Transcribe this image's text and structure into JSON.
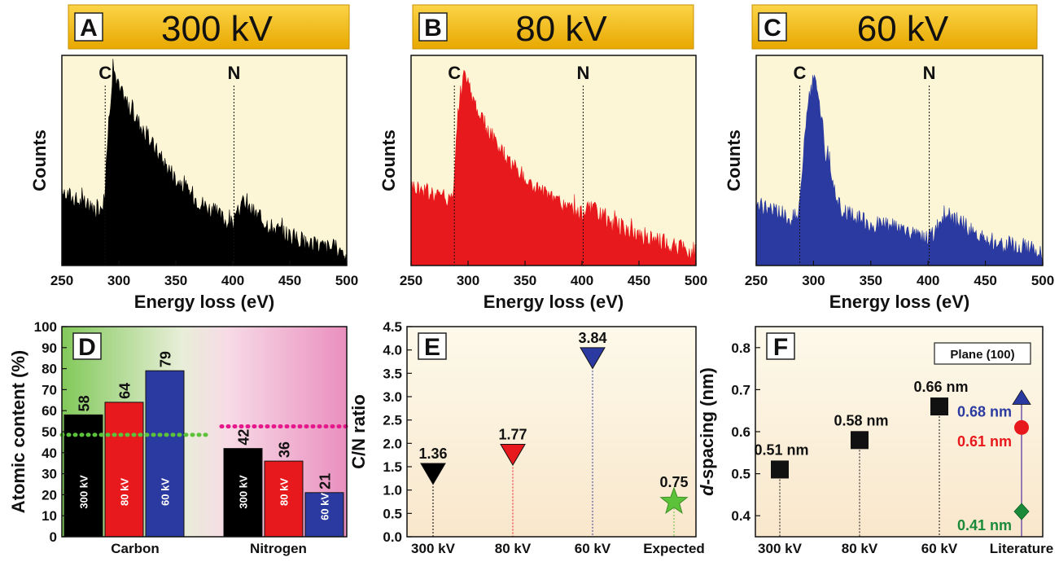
{
  "chart_data": [
    {
      "panel": "A",
      "type": "area",
      "banner": "300 kV",
      "xlabel": "Energy loss (eV)",
      "ylabel": "Counts",
      "xlim": [
        250,
        500
      ],
      "xticks": [
        "250",
        "300",
        "350",
        "400",
        "450",
        "500"
      ],
      "edges": [
        {
          "label": "C",
          "x": 288
        },
        {
          "label": "N",
          "x": 401
        }
      ],
      "color": "#000000",
      "series": [
        {
          "x": [
            250,
            260,
            270,
            280,
            287,
            291,
            295,
            300,
            310,
            320,
            330,
            340,
            350,
            360,
            370,
            380,
            390,
            398,
            402,
            408,
            415,
            425,
            440,
            460,
            480,
            500
          ],
          "y": [
            0.36,
            0.32,
            0.29,
            0.27,
            0.3,
            0.68,
            0.95,
            0.84,
            0.75,
            0.66,
            0.57,
            0.49,
            0.42,
            0.36,
            0.31,
            0.27,
            0.23,
            0.2,
            0.21,
            0.3,
            0.27,
            0.22,
            0.17,
            0.12,
            0.09,
            0.07
          ]
        }
      ]
    },
    {
      "panel": "B",
      "type": "area",
      "banner": "80 kV",
      "xlabel": "Energy loss (eV)",
      "ylabel": "Counts",
      "xlim": [
        250,
        500
      ],
      "xticks": [
        "250",
        "300",
        "350",
        "400",
        "450",
        "500"
      ],
      "edges": [
        {
          "label": "C",
          "x": 288
        },
        {
          "label": "N",
          "x": 401
        }
      ],
      "color": "#e8191c",
      "series": [
        {
          "x": [
            250,
            260,
            270,
            280,
            287,
            291,
            296,
            300,
            310,
            320,
            330,
            340,
            350,
            360,
            370,
            380,
            390,
            398,
            402,
            408,
            415,
            425,
            440,
            460,
            480,
            500
          ],
          "y": [
            0.38,
            0.36,
            0.34,
            0.32,
            0.34,
            0.72,
            0.92,
            0.86,
            0.72,
            0.62,
            0.54,
            0.47,
            0.41,
            0.37,
            0.33,
            0.3,
            0.27,
            0.24,
            0.25,
            0.27,
            0.24,
            0.21,
            0.17,
            0.13,
            0.09,
            0.06
          ]
        }
      ]
    },
    {
      "panel": "C",
      "type": "area",
      "banner": "60 kV",
      "xlabel": "Energy loss (eV)",
      "ylabel": "Counts",
      "xlim": [
        250,
        500
      ],
      "xticks": [
        "250",
        "300",
        "350",
        "400",
        "450",
        "500"
      ],
      "edges": [
        {
          "label": "C",
          "x": 288
        },
        {
          "label": "N",
          "x": 401
        }
      ],
      "color": "#2b3aa0",
      "series": [
        {
          "x": [
            250,
            260,
            270,
            280,
            287,
            291,
            296,
            300,
            305,
            310,
            320,
            330,
            340,
            350,
            360,
            370,
            380,
            390,
            398,
            404,
            410,
            418,
            425,
            435,
            450,
            470,
            490,
            500
          ],
          "y": [
            0.3,
            0.27,
            0.25,
            0.23,
            0.24,
            0.52,
            0.78,
            0.88,
            0.8,
            0.55,
            0.3,
            0.24,
            0.22,
            0.2,
            0.19,
            0.18,
            0.16,
            0.14,
            0.12,
            0.14,
            0.2,
            0.24,
            0.22,
            0.18,
            0.13,
            0.1,
            0.08,
            0.07
          ]
        }
      ]
    },
    {
      "panel": "D",
      "type": "bar",
      "ylabel": "Atomic content (%)",
      "ylim": [
        0,
        100
      ],
      "yticks": [
        "0",
        "10",
        "20",
        "30",
        "40",
        "50",
        "60",
        "70",
        "80",
        "90",
        "100"
      ],
      "categories": [
        "Carbon",
        "Nitrogen"
      ],
      "series": [
        {
          "name": "300 kV",
          "values": [
            58,
            42
          ],
          "color": "#000000"
        },
        {
          "name": "80 kV",
          "values": [
            64,
            36
          ],
          "color": "#e8191c"
        },
        {
          "name": "60 kV",
          "values": [
            79,
            21
          ],
          "color": "#2b3aa0"
        }
      ],
      "value_labels": [
        [
          "58",
          "64",
          "79"
        ],
        [
          "42",
          "36",
          "21"
        ]
      ],
      "reference_lines": [
        {
          "category": "Carbon",
          "y": 48.5,
          "color": "#5cc23a"
        },
        {
          "category": "Nitrogen",
          "y": 52.5,
          "color": "#e6198c"
        }
      ]
    },
    {
      "panel": "E",
      "type": "scatter",
      "ylabel": "C/N ratio",
      "ylim": [
        0,
        4.5
      ],
      "yticks": [
        "0.0",
        "0.5",
        "1.0",
        "1.5",
        "2.0",
        "2.5",
        "3.0",
        "3.5",
        "4.0",
        "4.5"
      ],
      "categories": [
        "300 kV",
        "80 kV",
        "60 kV",
        "Expected"
      ],
      "values": [
        1.36,
        1.77,
        3.84,
        0.75
      ],
      "labels": [
        "1.36",
        "1.77",
        "3.84",
        "0.75"
      ],
      "colors": [
        "#000000",
        "#e8191c",
        "#2b3aa0",
        "#5cc23a"
      ],
      "markers": [
        "triangle-down",
        "triangle-down",
        "triangle-down",
        "star"
      ]
    },
    {
      "panel": "F",
      "type": "scatter",
      "ylabel": "d-spacing (nm)",
      "ylabel_italic": "d",
      "ylabel_rest": "-spacing (nm)",
      "ylim": [
        0.35,
        0.85
      ],
      "yticks": [
        "0.4",
        "0.5",
        "0.6",
        "0.7",
        "0.8"
      ],
      "legend_box": "Plane (100)",
      "categories": [
        "300 kV",
        "80 kV",
        "60 kV",
        "Literature"
      ],
      "measured": [
        {
          "category": "300 kV",
          "value": 0.51,
          "label": "0.51 nm"
        },
        {
          "category": "80 kV",
          "value": 0.58,
          "label": "0.58 nm"
        },
        {
          "category": "60 kV",
          "value": 0.66,
          "label": "0.66 nm"
        }
      ],
      "literature": [
        {
          "value": 0.68,
          "label": "0.68 nm",
          "color": "#2b3aa0",
          "marker": "triangle-up"
        },
        {
          "value": 0.61,
          "label": "0.61 nm",
          "color": "#e8191c",
          "marker": "circle"
        },
        {
          "value": 0.41,
          "label": "0.41 nm",
          "color": "#1a8a3a",
          "marker": "diamond"
        }
      ]
    }
  ],
  "colors": {
    "banner_gold": "#f6c523",
    "banner_dark": "#e6a400",
    "panel_bg": "#fdf6d6"
  }
}
